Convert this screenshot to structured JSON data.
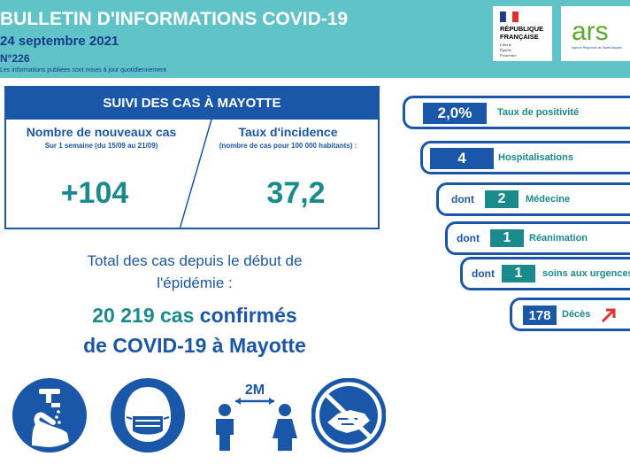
{
  "header": {
    "title": "BULLETIN D'INFORMATIONS COVID-19",
    "date": "24 septembre 2021",
    "number": "N°226",
    "note": "Les informations publiées sont mises à jour quotidiennement",
    "logo_rf_lines": [
      "RÉPUBLIQUE",
      "FRANÇAISE"
    ],
    "logo_rf_motto": [
      "Liberté",
      "Égalité",
      "Fraternité"
    ],
    "logo_ars_text": "ars",
    "logo_ars_sub": "Agence Régionale de Santé Mayotte"
  },
  "panel": {
    "heading": "SUIVI DES CAS À MAYOTTE",
    "left_title": "Nombre de nouveaux cas",
    "left_sub": "Sur 1 semaine (du 15/09 au 21/09)",
    "left_value": "+104",
    "right_title": "Taux d'incidence",
    "right_sub": "(nombre de cas pour 100 000 habitants) :",
    "right_value": "37,2"
  },
  "total": {
    "line1": "Total des cas depuis le début de",
    "line2": "l'épidémie :",
    "count": "20 219 cas",
    "confirmed": "confirmés",
    "line4": "de COVID-19 à Mayotte"
  },
  "icons": [
    "hand-washing-icon",
    "face-mask-icon",
    "distancing-icon",
    "no-handshake-icon"
  ],
  "distance_label": "2M",
  "stats": {
    "positivity_value": "2,0%",
    "positivity_label": "Taux de positivité",
    "hosp_value": "4",
    "hosp_label": "Hospitalisations",
    "dont": "dont",
    "med_value": "2",
    "med_label": "Médecine",
    "rea_value": "1",
    "rea_label": "Réanimation",
    "urg_value": "1",
    "urg_label": "soins aux urgences",
    "deaths_value": "178",
    "deaths_label": "Décès",
    "trend": "up"
  },
  "colors": {
    "teal": "#5fc3c8",
    "blue": "#1a57a8",
    "green": "#1a8a8c",
    "red": "#e03030"
  }
}
